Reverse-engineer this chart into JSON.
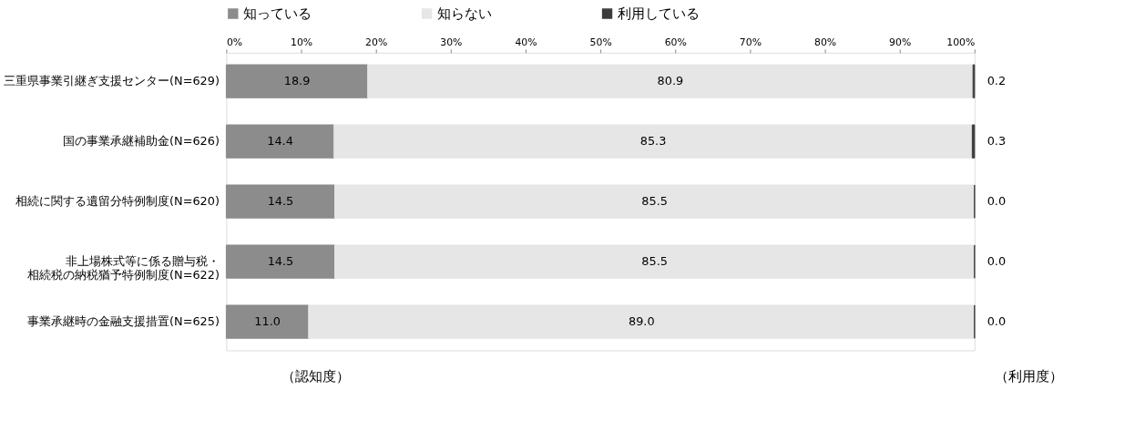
{
  "chart_data": {
    "type": "bar",
    "orientation": "horizontal",
    "stacked": true,
    "categories": [
      "三重県事業引継ぎ支援センター(N=629)",
      "国の事業承継補助金(N=626)",
      "相続に関する遺留分特例制度(N=620)",
      "非上場株式等に係る贈与税・相続税の納税猶予特例制度(N=622)",
      "事業承継時の金融支援措置(N=625)"
    ],
    "series": [
      {
        "name": "知っている",
        "color": "#8c8c8c",
        "values": [
          18.9,
          14.4,
          14.5,
          14.5,
          11.0
        ],
        "value_labels": [
          "18.9",
          "14.4",
          "14.5",
          "14.5",
          "11.0"
        ]
      },
      {
        "name": "知らない",
        "color": "#e6e6e6",
        "values": [
          80.9,
          85.3,
          85.5,
          85.5,
          89.0
        ],
        "value_labels": [
          "80.9",
          "85.3",
          "85.5",
          "85.5",
          "89.0"
        ]
      },
      {
        "name": "利用している",
        "color": "#3c3c3c",
        "values": [
          0.2,
          0.3,
          0.0,
          0.0,
          0.0
        ],
        "value_labels": [
          "0.2",
          "0.3",
          "0.0",
          "0.0",
          "0.0"
        ]
      }
    ],
    "xlim": [
      0,
      100
    ],
    "xticks": [
      {
        "value": 0,
        "label": "0%"
      },
      {
        "value": 10,
        "label": "10%"
      },
      {
        "value": 20,
        "label": "20%"
      },
      {
        "value": 30,
        "label": "30%"
      },
      {
        "value": 40,
        "label": "40%"
      },
      {
        "value": 50,
        "label": "50%"
      },
      {
        "value": 60,
        "label": "60%"
      },
      {
        "value": 70,
        "label": "70%"
      },
      {
        "value": 80,
        "label": "80%"
      },
      {
        "value": 90,
        "label": "90%"
      },
      {
        "value": 100,
        "label": "100%"
      }
    ],
    "legend": "top",
    "grid": false,
    "annotations": [
      "（認知度）",
      "（利用度）"
    ]
  }
}
